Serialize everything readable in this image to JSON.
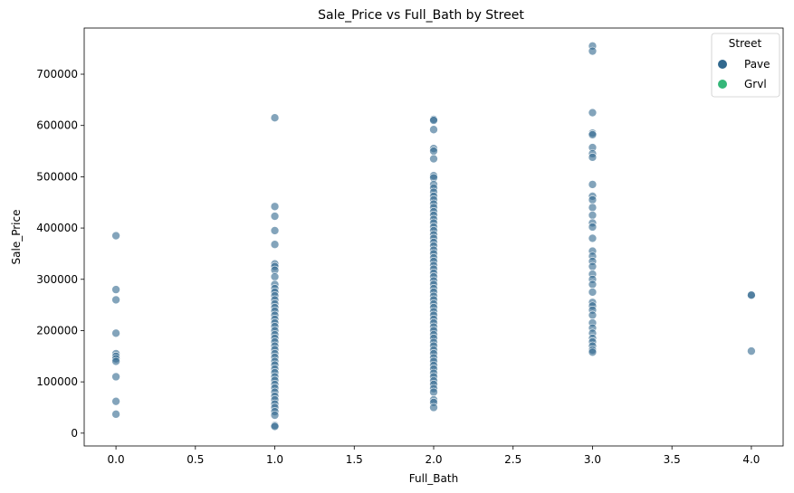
{
  "chart_data": {
    "type": "scatter",
    "title": "Sale_Price vs Full_Bath by Street",
    "xlabel": "Full_Bath",
    "ylabel": "Sale_Price",
    "xlim": [
      -0.2,
      4.2
    ],
    "ylim": [
      -25000,
      790000
    ],
    "x_ticks": [
      0.0,
      0.5,
      1.0,
      1.5,
      2.0,
      2.5,
      3.0,
      3.5,
      4.0
    ],
    "x_tick_labels": [
      "0.0",
      "0.5",
      "1.0",
      "1.5",
      "2.0",
      "2.5",
      "3.0",
      "3.5",
      "4.0"
    ],
    "y_ticks": [
      0,
      100000,
      200000,
      300000,
      400000,
      500000,
      600000,
      700000
    ],
    "y_tick_labels": [
      "0",
      "100000",
      "200000",
      "300000",
      "400000",
      "500000",
      "600000",
      "700000"
    ],
    "grid": false,
    "legend": {
      "title": "Street",
      "position": "top-right",
      "entries": [
        {
          "name": "Pave",
          "color": "#31688e"
        },
        {
          "name": "Grvl",
          "color": "#35b779"
        }
      ]
    },
    "series": [
      {
        "name": "Pave",
        "color": "#31688e",
        "points": [
          {
            "x": 0,
            "y": 385000
          },
          {
            "x": 0,
            "y": 280000
          },
          {
            "x": 0,
            "y": 260000
          },
          {
            "x": 0,
            "y": 195000
          },
          {
            "x": 0,
            "y": 155000
          },
          {
            "x": 0,
            "y": 150000
          },
          {
            "x": 0,
            "y": 145000
          },
          {
            "x": 0,
            "y": 140000
          },
          {
            "x": 0,
            "y": 110000
          },
          {
            "x": 0,
            "y": 62000
          },
          {
            "x": 0,
            "y": 37000
          },
          {
            "x": 1,
            "y": 615000
          },
          {
            "x": 1,
            "y": 442000
          },
          {
            "x": 1,
            "y": 423000
          },
          {
            "x": 1,
            "y": 395000
          },
          {
            "x": 1,
            "y": 368000
          },
          {
            "x": 1,
            "y": 330000
          },
          {
            "x": 1,
            "y": 325000
          },
          {
            "x": 1,
            "y": 318000
          },
          {
            "x": 1,
            "y": 305000
          },
          {
            "x": 1,
            "y": 290000
          },
          {
            "x": 1,
            "y": 282000
          },
          {
            "x": 1,
            "y": 275000
          },
          {
            "x": 1,
            "y": 268000
          },
          {
            "x": 1,
            "y": 260000
          },
          {
            "x": 1,
            "y": 252000
          },
          {
            "x": 1,
            "y": 245000
          },
          {
            "x": 1,
            "y": 238000
          },
          {
            "x": 1,
            "y": 230000
          },
          {
            "x": 1,
            "y": 222000
          },
          {
            "x": 1,
            "y": 215000
          },
          {
            "x": 1,
            "y": 208000
          },
          {
            "x": 1,
            "y": 200000
          },
          {
            "x": 1,
            "y": 192000
          },
          {
            "x": 1,
            "y": 185000
          },
          {
            "x": 1,
            "y": 178000
          },
          {
            "x": 1,
            "y": 170000
          },
          {
            "x": 1,
            "y": 163000
          },
          {
            "x": 1,
            "y": 155000
          },
          {
            "x": 1,
            "y": 148000
          },
          {
            "x": 1,
            "y": 140000
          },
          {
            "x": 1,
            "y": 133000
          },
          {
            "x": 1,
            "y": 125000
          },
          {
            "x": 1,
            "y": 118000
          },
          {
            "x": 1,
            "y": 110000
          },
          {
            "x": 1,
            "y": 103000
          },
          {
            "x": 1,
            "y": 95000
          },
          {
            "x": 1,
            "y": 88000
          },
          {
            "x": 1,
            "y": 80000
          },
          {
            "x": 1,
            "y": 72000
          },
          {
            "x": 1,
            "y": 65000
          },
          {
            "x": 1,
            "y": 57000
          },
          {
            "x": 1,
            "y": 50000
          },
          {
            "x": 1,
            "y": 42000
          },
          {
            "x": 1,
            "y": 35000
          },
          {
            "x": 1,
            "y": 15000
          },
          {
            "x": 1,
            "y": 13000
          },
          {
            "x": 2,
            "y": 612000
          },
          {
            "x": 2,
            "y": 610000
          },
          {
            "x": 2,
            "y": 592000
          },
          {
            "x": 2,
            "y": 555000
          },
          {
            "x": 2,
            "y": 550000
          },
          {
            "x": 2,
            "y": 535000
          },
          {
            "x": 2,
            "y": 502000
          },
          {
            "x": 2,
            "y": 498000
          },
          {
            "x": 2,
            "y": 485000
          },
          {
            "x": 2,
            "y": 478000
          },
          {
            "x": 2,
            "y": 470000
          },
          {
            "x": 2,
            "y": 462000
          },
          {
            "x": 2,
            "y": 455000
          },
          {
            "x": 2,
            "y": 447000
          },
          {
            "x": 2,
            "y": 440000
          },
          {
            "x": 2,
            "y": 432000
          },
          {
            "x": 2,
            "y": 425000
          },
          {
            "x": 2,
            "y": 417000
          },
          {
            "x": 2,
            "y": 410000
          },
          {
            "x": 2,
            "y": 402000
          },
          {
            "x": 2,
            "y": 395000
          },
          {
            "x": 2,
            "y": 387000
          },
          {
            "x": 2,
            "y": 380000
          },
          {
            "x": 2,
            "y": 372000
          },
          {
            "x": 2,
            "y": 365000
          },
          {
            "x": 2,
            "y": 357000
          },
          {
            "x": 2,
            "y": 350000
          },
          {
            "x": 2,
            "y": 342000
          },
          {
            "x": 2,
            "y": 335000
          },
          {
            "x": 2,
            "y": 327000
          },
          {
            "x": 2,
            "y": 320000
          },
          {
            "x": 2,
            "y": 312000
          },
          {
            "x": 2,
            "y": 305000
          },
          {
            "x": 2,
            "y": 297000
          },
          {
            "x": 2,
            "y": 290000
          },
          {
            "x": 2,
            "y": 282000
          },
          {
            "x": 2,
            "y": 275000
          },
          {
            "x": 2,
            "y": 267000
          },
          {
            "x": 2,
            "y": 260000
          },
          {
            "x": 2,
            "y": 252000
          },
          {
            "x": 2,
            "y": 245000
          },
          {
            "x": 2,
            "y": 237000
          },
          {
            "x": 2,
            "y": 230000
          },
          {
            "x": 2,
            "y": 222000
          },
          {
            "x": 2,
            "y": 215000
          },
          {
            "x": 2,
            "y": 207000
          },
          {
            "x": 2,
            "y": 200000
          },
          {
            "x": 2,
            "y": 192000
          },
          {
            "x": 2,
            "y": 185000
          },
          {
            "x": 2,
            "y": 177000
          },
          {
            "x": 2,
            "y": 170000
          },
          {
            "x": 2,
            "y": 162000
          },
          {
            "x": 2,
            "y": 155000
          },
          {
            "x": 2,
            "y": 147000
          },
          {
            "x": 2,
            "y": 140000
          },
          {
            "x": 2,
            "y": 132000
          },
          {
            "x": 2,
            "y": 125000
          },
          {
            "x": 2,
            "y": 117000
          },
          {
            "x": 2,
            "y": 110000
          },
          {
            "x": 2,
            "y": 102000
          },
          {
            "x": 2,
            "y": 95000
          },
          {
            "x": 2,
            "y": 87000
          },
          {
            "x": 2,
            "y": 80000
          },
          {
            "x": 2,
            "y": 65000
          },
          {
            "x": 2,
            "y": 60000
          },
          {
            "x": 2,
            "y": 50000
          },
          {
            "x": 3,
            "y": 755000
          },
          {
            "x": 3,
            "y": 745000
          },
          {
            "x": 3,
            "y": 625000
          },
          {
            "x": 3,
            "y": 585000
          },
          {
            "x": 3,
            "y": 582000
          },
          {
            "x": 3,
            "y": 557000
          },
          {
            "x": 3,
            "y": 545000
          },
          {
            "x": 3,
            "y": 538000
          },
          {
            "x": 3,
            "y": 485000
          },
          {
            "x": 3,
            "y": 462000
          },
          {
            "x": 3,
            "y": 455000
          },
          {
            "x": 3,
            "y": 440000
          },
          {
            "x": 3,
            "y": 425000
          },
          {
            "x": 3,
            "y": 410000
          },
          {
            "x": 3,
            "y": 402000
          },
          {
            "x": 3,
            "y": 380000
          },
          {
            "x": 3,
            "y": 355000
          },
          {
            "x": 3,
            "y": 345000
          },
          {
            "x": 3,
            "y": 335000
          },
          {
            "x": 3,
            "y": 325000
          },
          {
            "x": 3,
            "y": 310000
          },
          {
            "x": 3,
            "y": 300000
          },
          {
            "x": 3,
            "y": 290000
          },
          {
            "x": 3,
            "y": 275000
          },
          {
            "x": 3,
            "y": 255000
          },
          {
            "x": 3,
            "y": 248000
          },
          {
            "x": 3,
            "y": 240000
          },
          {
            "x": 3,
            "y": 230000
          },
          {
            "x": 3,
            "y": 215000
          },
          {
            "x": 3,
            "y": 205000
          },
          {
            "x": 3,
            "y": 195000
          },
          {
            "x": 3,
            "y": 185000
          },
          {
            "x": 3,
            "y": 178000
          },
          {
            "x": 3,
            "y": 170000
          },
          {
            "x": 3,
            "y": 162000
          },
          {
            "x": 3,
            "y": 158000
          },
          {
            "x": 4,
            "y": 270000
          },
          {
            "x": 4,
            "y": 269000
          },
          {
            "x": 4,
            "y": 160000
          }
        ]
      },
      {
        "name": "Grvl",
        "color": "#35b779",
        "points": []
      }
    ]
  }
}
